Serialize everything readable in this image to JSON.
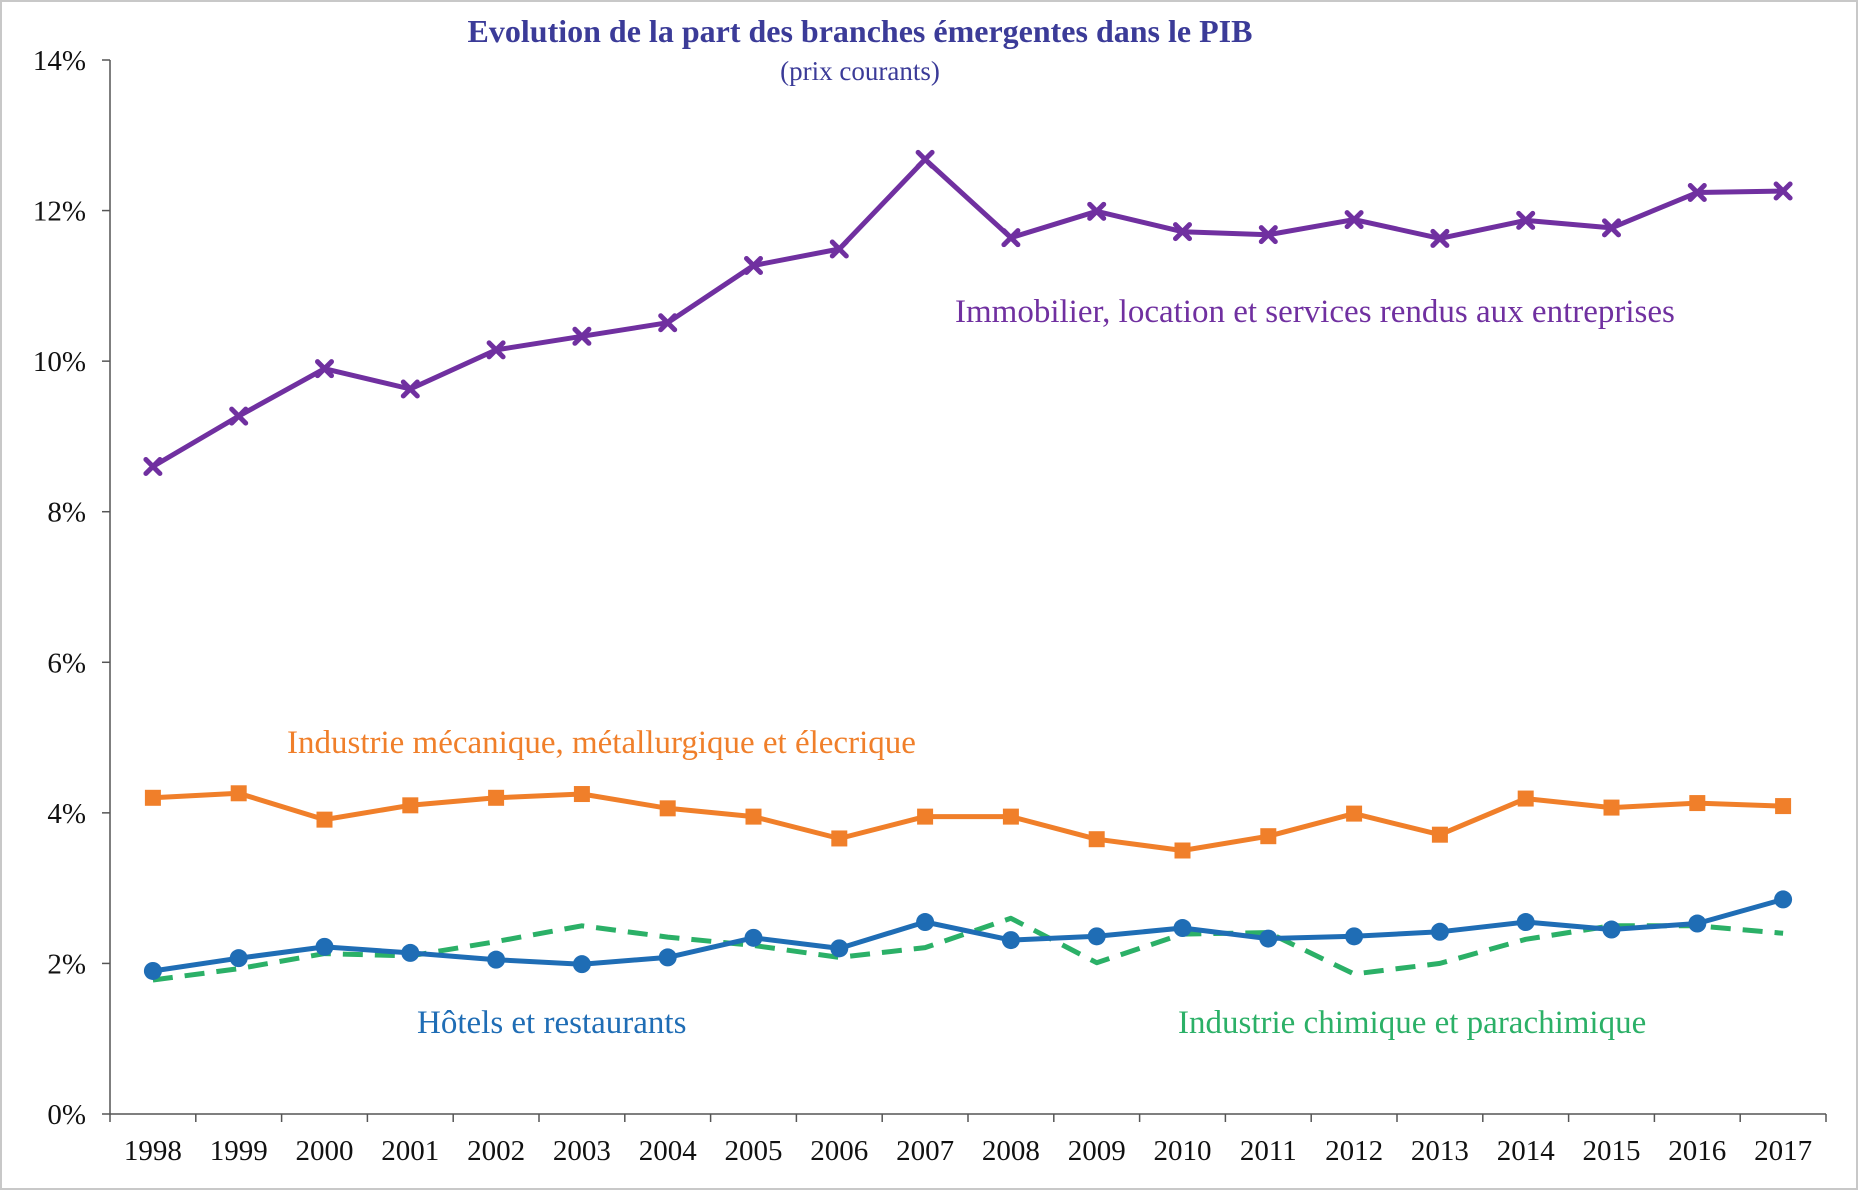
{
  "chart_data": {
    "type": "line",
    "title": "Evolution de la part des branches émergentes dans le PIB",
    "subtitle": "(prix courants)",
    "xlabel": "",
    "ylabel": "",
    "x": [
      "1998",
      "1999",
      "2000",
      "2001",
      "2002",
      "2003",
      "2004",
      "2005",
      "2006",
      "2007",
      "2008",
      "2009",
      "2010",
      "2011",
      "2012",
      "2013",
      "2014",
      "2015",
      "2016",
      "2017"
    ],
    "ylim": [
      0,
      14
    ],
    "y_ticks": [
      {
        "value": 0,
        "label": "0%"
      },
      {
        "value": 2,
        "label": "2%"
      },
      {
        "value": 4,
        "label": "4%"
      },
      {
        "value": 6,
        "label": "6%"
      },
      {
        "value": 8,
        "label": "8%"
      },
      {
        "value": 10,
        "label": "10%"
      },
      {
        "value": 12,
        "label": "12%"
      },
      {
        "value": 14,
        "label": "14%"
      }
    ],
    "grid": false,
    "legend": "inline labels",
    "title_color": "#3b3b98",
    "series": [
      {
        "name": "Immobilier, location et services rendus aux entreprises",
        "color": "#7030a0",
        "marker": "x",
        "dash": "solid",
        "values": [
          8.6,
          9.27,
          9.9,
          9.63,
          10.15,
          10.33,
          10.51,
          11.27,
          11.49,
          12.68,
          11.64,
          11.99,
          11.72,
          11.68,
          11.88,
          11.63,
          11.87,
          11.77,
          12.24,
          12.26
        ]
      },
      {
        "name": "Industrie mécanique, métallurgique et élecrique",
        "color": "#f07f2a",
        "marker": "square",
        "dash": "solid",
        "values": [
          4.2,
          4.26,
          3.91,
          4.1,
          4.2,
          4.25,
          4.06,
          3.95,
          3.66,
          3.95,
          3.95,
          3.65,
          3.5,
          3.69,
          3.99,
          3.71,
          4.19,
          4.07,
          4.13,
          4.09
        ]
      },
      {
        "name": "Hôtels et restaurants",
        "color": "#1f6db5",
        "marker": "circle",
        "dash": "solid",
        "values": [
          1.9,
          2.07,
          2.22,
          2.14,
          2.05,
          1.99,
          2.08,
          2.34,
          2.2,
          2.55,
          2.31,
          2.36,
          2.47,
          2.33,
          2.36,
          2.42,
          2.55,
          2.45,
          2.53,
          2.85
        ]
      },
      {
        "name": "Industrie chimique et parachimique",
        "color": "#2bb067",
        "marker": "none",
        "dash": "dashed",
        "values": [
          1.78,
          1.93,
          2.13,
          2.1,
          2.29,
          2.5,
          2.35,
          2.24,
          2.08,
          2.21,
          2.6,
          2.01,
          2.39,
          2.41,
          1.86,
          2.0,
          2.32,
          2.5,
          2.5,
          2.4
        ]
      }
    ]
  }
}
